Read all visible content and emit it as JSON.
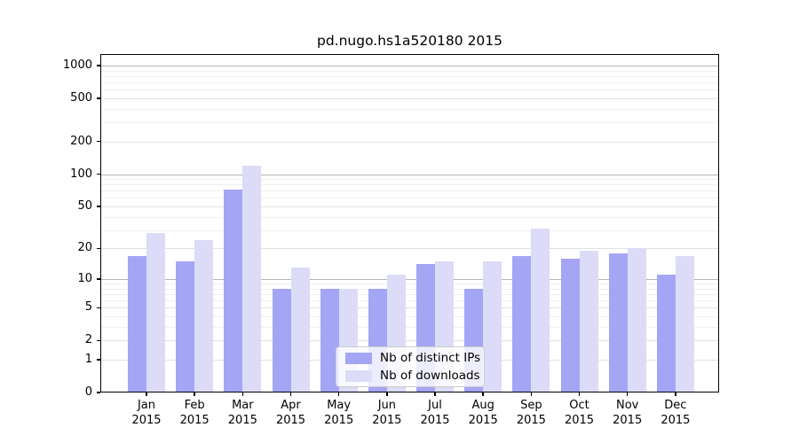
{
  "title": "pd.nugo.hs1a520180 2015",
  "colors": {
    "distinct_ips": "#a5a5f5",
    "downloads": "#dcdcf8",
    "grid_major": "#b5b5b5",
    "grid_mid": "#e2e2e2",
    "grid_minor": "#f0f0f0",
    "axis": "#000000"
  },
  "legend": {
    "items": [
      {
        "label": "Nb of distinct IPs",
        "color_key": "distinct_ips"
      },
      {
        "label": "Nb of downloads",
        "color_key": "downloads"
      }
    ]
  },
  "chart_data": {
    "type": "bar",
    "title": "pd.nugo.hs1a520180 2015",
    "categories": [
      "Jan 2015",
      "Feb 2015",
      "Mar 2015",
      "Apr 2015",
      "May 2015",
      "Jun 2015",
      "Jul 2015",
      "Aug 2015",
      "Sep 2015",
      "Oct 2015",
      "Nov 2015",
      "Dec 2015"
    ],
    "series": [
      {
        "name": "Nb of distinct IPs",
        "values": [
          17,
          15,
          72,
          8,
          8,
          8,
          14,
          8,
          17,
          16,
          18,
          11
        ]
      },
      {
        "name": "Nb of downloads",
        "values": [
          28,
          24,
          120,
          13,
          8,
          11,
          15,
          15,
          31,
          19,
          20,
          17
        ]
      }
    ],
    "xlabel": "",
    "ylabel": "",
    "yscale": "log1p",
    "ylim": [
      0,
      1276
    ],
    "yticks": [
      0,
      1,
      2,
      5,
      10,
      20,
      50,
      100,
      200,
      500,
      1000
    ],
    "yticks_major": [
      10,
      100,
      1000
    ],
    "yticks_minor": [
      3,
      4,
      6,
      7,
      8,
      9,
      30,
      40,
      60,
      70,
      80,
      90,
      300,
      400,
      600,
      700,
      800,
      900
    ],
    "grid": true,
    "legend_position": "lower center"
  }
}
